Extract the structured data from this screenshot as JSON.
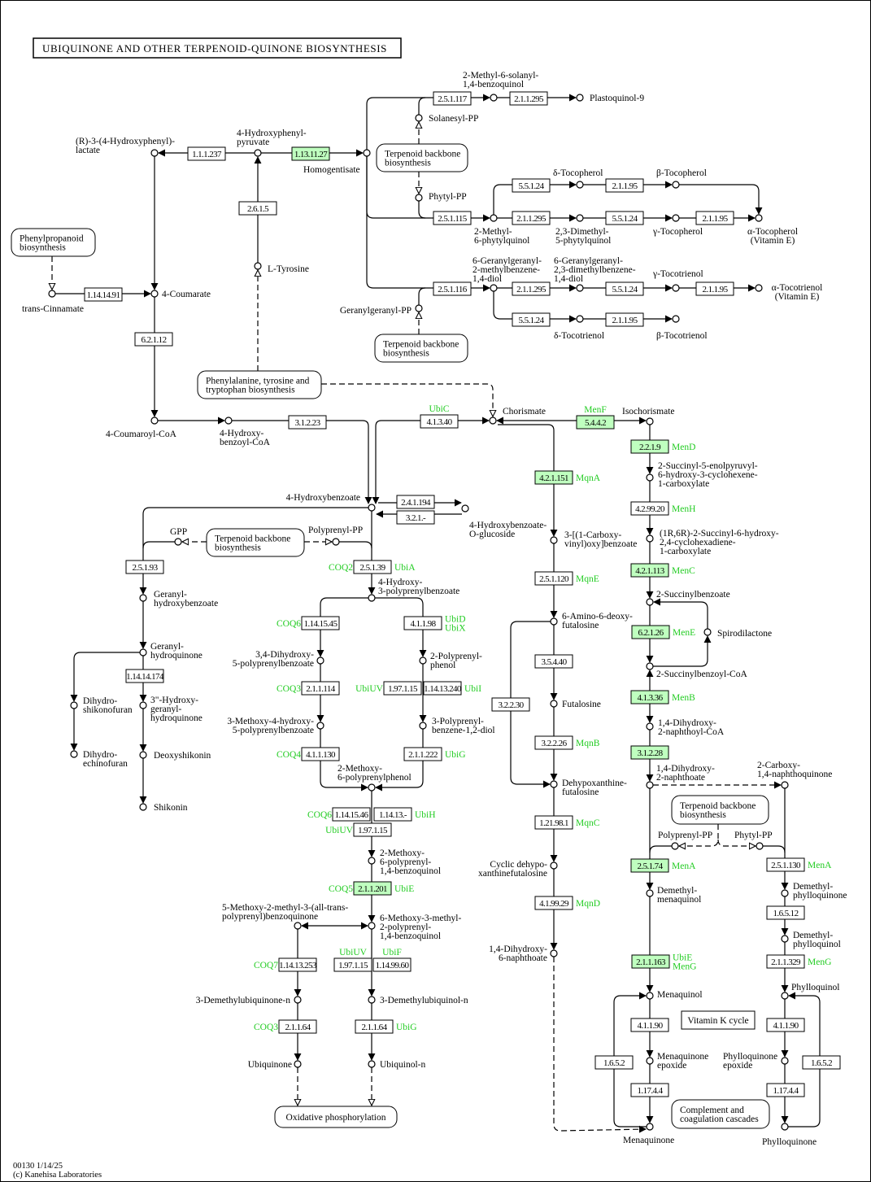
{
  "title": "UBIQUINONE AND OTHER TERPENOID-QUINONE BIOSYNTHESIS",
  "footer": {
    "map_id_date": "00130 1/14/25",
    "copyright": "(c) Kanehisa Laboratories"
  },
  "colors": {
    "highlight_fill": "#bfffbf",
    "gene_text": "#22cc22",
    "line": "#000000"
  },
  "maps": {
    "terp1": [
      "Terpenoid backbone",
      "biosynthesis"
    ],
    "phenyl": [
      "Phenylpropanoid",
      "biosynthesis"
    ],
    "terp2": [
      "Terpenoid backbone",
      "biosynthesis"
    ],
    "phetyr": [
      "Phenylalanine, tyrosine and",
      "tryptophan biosynthesis"
    ],
    "terp3": [
      "Terpenoid backbone",
      "biosynthesis"
    ],
    "terp4": [
      "Terpenoid backbone",
      "biosynthesis"
    ],
    "vitk": [
      "Vitamin K cycle"
    ],
    "compl": [
      "Complement and",
      "coagulation cascades"
    ],
    "oxphos": [
      "Oxidative phosphorylation"
    ]
  },
  "compounds": {
    "hpp": [
      "4-Hydroxyphenyl-",
      "pyruvate"
    ],
    "rlac": [
      "(R)-3-(4-Hydroxyphenyl)-",
      "lactate"
    ],
    "hga": [
      "Homogentisate"
    ],
    "tyr": [
      "L-Tyrosine"
    ],
    "cin": [
      "trans-Cinnamate"
    ],
    "coum": [
      "4-Coumarate"
    ],
    "coumcoa": [
      "4-Coumaroyl-CoA"
    ],
    "hbcoa": [
      "4-Hydroxy-",
      "benzoyl-CoA"
    ],
    "hb": [
      "4-Hydroxybenzoate"
    ],
    "hbglc": [
      "4-Hydroxybenzoate-",
      "O-glucoside"
    ],
    "chor": [
      "Chorismate"
    ],
    "isoch": [
      "Isochorismate"
    ],
    "m6s": [
      "2-Methyl-6-solanyl-",
      "1,4-benzoquinol"
    ],
    "pq9": [
      "Plastoquinol-9"
    ],
    "sol": [
      "Solanesyl-PP"
    ],
    "phy": [
      "Phytyl-PP"
    ],
    "m6p": [
      "2-Methyl-",
      "6-phytylquinol"
    ],
    "dmp": [
      "2,3-Dimethyl-",
      "5-phytylquinol"
    ],
    "dtoc": [
      "δ-Tocopherol"
    ],
    "btoc": [
      "β-Tocopherol"
    ],
    "gtoc": [
      "γ-Tocopherol"
    ],
    "atoc": [
      "α-Tocopherol",
      "(Vitamin E)"
    ],
    "ggmb": [
      "6-Geranylgeranyl-",
      "2-methylbenzene-",
      "1,4-diol"
    ],
    "ggdmb": [
      "6-Geranylgeranyl-",
      "2,3-dimethylbenzene-",
      "1,4-diol"
    ],
    "gtt": [
      "γ-Tocotrienol"
    ],
    "att": [
      "α-Tocotrienol",
      "(Vitamin E)"
    ],
    "dtt": [
      "δ-Tocotrienol"
    ],
    "btt": [
      "β-Tocotrienol"
    ],
    "ggpp": [
      "Geranylgeranyl-PP"
    ],
    "gpp": [
      "GPP"
    ],
    "ppp": [
      "Polyprenyl-PP"
    ],
    "ghb": [
      "Geranyl-",
      "hydroxybenzoate"
    ],
    "ghq": [
      "Geranyl-",
      "hydroquinone"
    ],
    "hgh": [
      "3\"-Hydroxy-",
      "geranyl-",
      "hydroquinone"
    ],
    "dsk": [
      "Deoxyshikonin"
    ],
    "shk": [
      "Shikonin"
    ],
    "dhsf": [
      "Dihydro-",
      "shikonofuran"
    ],
    "dhef": [
      "Dihydro-",
      "echinofuran"
    ],
    "h3pb": [
      "4-Hydroxy-",
      "3-polyprenylbenzoate"
    ],
    "dhpb": [
      "3,4-Dihydroxy-",
      "5-polyprenylbenzoate"
    ],
    "ppph": [
      "2-Polyprenyl-",
      "phenol"
    ],
    "mhpb": [
      "3-Methoxy-4-hydroxy-",
      "5-polyprenylbenzoate"
    ],
    "ppbd": [
      "3-Polyprenyl-",
      "benzene-1,2-diol"
    ],
    "mppp": [
      "2-Methoxy-",
      "6-polyprenylphenol"
    ],
    "mpbq": [
      "2-Methoxy-",
      "6-polyprenyl-",
      "1,4-benzoquinol"
    ],
    "mmab": [
      "5-Methoxy-2-methyl-3-(all-trans-",
      "polyprenyl)benzoquinone"
    ],
    "mmpb": [
      "6-Methoxy-3-methyl-",
      "2-polyprenyl-",
      "1,4-benzoquinol"
    ],
    "dmuq": [
      "3-Demethylubiquinone-n"
    ],
    "dmul": [
      "3-Demethylubiquinol-n"
    ],
    "ubq": [
      "Ubiquinone"
    ],
    "ubql": [
      "Ubiquinol-n"
    ],
    "cvb": [
      "3-[(1-Carboxy-",
      "vinyl)oxy]benzoate"
    ],
    "aadf": [
      "6-Amino-6-deoxy-",
      "futalosine"
    ],
    "futa": [
      "Futalosine"
    ],
    "dhfu": [
      "Dehypoxanthine-",
      "futalosine"
    ],
    "cdhf": [
      "Cyclic dehypo-",
      "xanthinefutalosine"
    ],
    "dhna6": [
      "1,4-Dihydroxy-",
      "6-naphthoate"
    ],
    "sephc": [
      "2-Succinyl-5-enolpyruvyl-",
      "6-hydroxy-3-cyclohexene-",
      "1-carboxylate"
    ],
    "shch": [
      "(1R,6R)-2-Succinyl-6-hydroxy-",
      "2,4-cyclohexadiene-",
      "1-carboxylate"
    ],
    "sb": [
      "2-Succinylbenzoate"
    ],
    "spiro": [
      "Spirodilactone"
    ],
    "sbcoa": [
      "2-Succinylbenzoyl-CoA"
    ],
    "dhncoa": [
      "1,4-Dihydroxy-",
      "2-naphthoyl-CoA"
    ],
    "dhna": [
      "1,4-Dihydroxy-",
      "2-naphthoate"
    ],
    "cnq": [
      "2-Carboxy-",
      "1,4-naphthoquinone"
    ],
    "ppp2": [
      "Polyprenyl-PP"
    ],
    "phy2": [
      "Phytyl-PP"
    ],
    "dmmql": [
      "Demethyl-",
      "menaquinol"
    ],
    "dmpq": [
      "Demethyl-",
      "phylloquinone"
    ],
    "dmpql": [
      "Demethyl-",
      "phylloquinol"
    ],
    "mql": [
      "Menaquinol"
    ],
    "pql": [
      "Phylloquinol"
    ],
    "mqe": [
      "Menaquinone",
      "epoxide"
    ],
    "pqe": [
      "Phylloquinone",
      "epoxide"
    ],
    "mq": [
      "Menaquinone"
    ],
    "pq": [
      "Phylloquinone"
    ]
  },
  "enzymes": {
    "e1": {
      "ec": "1.1.1.237",
      "hl": false
    },
    "e2": {
      "ec": "1.13.11.27",
      "hl": true
    },
    "e3": {
      "ec": "2.6.1.5",
      "hl": false
    },
    "e4": {
      "ec": "1.14.14.91",
      "hl": false
    },
    "e5": {
      "ec": "6.2.1.12",
      "hl": false
    },
    "e6": {
      "ec": "3.1.2.23",
      "hl": false
    },
    "e7": {
      "ec": "4.1.3.40",
      "hl": false,
      "top": "UbiC"
    },
    "e8": {
      "ec": "5.4.4.2",
      "hl": true,
      "top": "MenF"
    },
    "e9": {
      "ec": "2.5.1.117",
      "hl": false
    },
    "e10": {
      "ec": "2.1.1.295",
      "hl": false
    },
    "e11": {
      "ec": "5.5.1.24",
      "hl": false
    },
    "e12": {
      "ec": "2.1.1.95",
      "hl": false
    },
    "e13": {
      "ec": "2.5.1.115",
      "hl": false
    },
    "e14": {
      "ec": "2.1.1.295",
      "hl": false
    },
    "e15": {
      "ec": "5.5.1.24",
      "hl": false
    },
    "e16": {
      "ec": "2.1.1.95",
      "hl": false
    },
    "e17": {
      "ec": "2.5.1.116",
      "hl": false
    },
    "e18": {
      "ec": "2.1.1.295",
      "hl": false
    },
    "e19": {
      "ec": "5.5.1.24",
      "hl": false
    },
    "e20": {
      "ec": "2.1.1.95",
      "hl": false
    },
    "e21": {
      "ec": "5.5.1.24",
      "hl": false
    },
    "e22": {
      "ec": "2.1.1.95",
      "hl": false
    },
    "e23": {
      "ec": "2.4.1.194",
      "hl": false
    },
    "e24": {
      "ec": "3.2.1.-",
      "hl": false
    },
    "e25": {
      "ec": "2.5.1.93",
      "hl": false
    },
    "e26": {
      "ec": "2.5.1.39",
      "hl": false,
      "left": "COQ2",
      "right": [
        "UbiA"
      ]
    },
    "e27": {
      "ec": "1.14.14.174",
      "hl": false
    },
    "e28": {
      "ec": "1.14.15.45",
      "hl": false,
      "left": "COQ6"
    },
    "e29": {
      "ec": "4.1.1.98",
      "hl": false,
      "right": [
        "UbiD",
        "UbiX"
      ]
    },
    "e30": {
      "ec": "2.1.1.114",
      "hl": false,
      "left": "COQ3"
    },
    "e31": {
      "ec": "1.97.1.15",
      "hl": false,
      "left": "UbiUV"
    },
    "e32": {
      "ec": "1.14.13.240",
      "hl": false,
      "right": [
        "UbiI"
      ]
    },
    "e33": {
      "ec": "4.1.1.130",
      "hl": false,
      "left": "COQ4"
    },
    "e34": {
      "ec": "2.1.1.222",
      "hl": false,
      "right": [
        "UbiG"
      ]
    },
    "e35": {
      "ec": "1.14.15.46",
      "hl": false,
      "left": "COQ6"
    },
    "e36": {
      "ec": "1.14.13.-",
      "hl": false,
      "right": [
        "UbiH"
      ]
    },
    "e37": {
      "ec": "1.97.1.15",
      "hl": false,
      "left": "UbiUV"
    },
    "e38": {
      "ec": "2.1.1.201",
      "hl": true,
      "left": "COQ5",
      "right": [
        "UbiE"
      ]
    },
    "e39": {
      "ec": "1.14.13.253",
      "hl": false,
      "left": "COQ7"
    },
    "e40": {
      "ec": "1.97.1.15",
      "hl": false,
      "top": "UbiUV"
    },
    "e41": {
      "ec": "1.14.99.60",
      "hl": false,
      "top": "UbiF"
    },
    "e42": {
      "ec": "2.1.1.64",
      "hl": false,
      "left": "COQ3"
    },
    "e43": {
      "ec": "2.1.1.64",
      "hl": false,
      "right": [
        "UbiG"
      ]
    },
    "e44": {
      "ec": "4.2.1.151",
      "hl": true,
      "right": [
        "MqnA"
      ]
    },
    "e45": {
      "ec": "2.5.1.120",
      "hl": false,
      "right": [
        "MqnE"
      ]
    },
    "e46": {
      "ec": "3.5.4.40",
      "hl": false
    },
    "e47": {
      "ec": "3.2.2.30",
      "hl": false
    },
    "e48": {
      "ec": "3.2.2.26",
      "hl": false,
      "right": [
        "MqnB"
      ]
    },
    "e49": {
      "ec": "1.21.98.1",
      "hl": false,
      "right": [
        "MqnC"
      ]
    },
    "e50": {
      "ec": "4.1.99.29",
      "hl": false,
      "right": [
        "MqnD"
      ]
    },
    "e51": {
      "ec": "2.2.1.9",
      "hl": true,
      "right": [
        "MenD"
      ]
    },
    "e52": {
      "ec": "4.2.99.20",
      "hl": false,
      "right": [
        "MenH"
      ]
    },
    "e53": {
      "ec": "4.2.1.113",
      "hl": true,
      "right": [
        "MenC"
      ]
    },
    "e54": {
      "ec": "6.2.1.26",
      "hl": true,
      "right": [
        "MenE"
      ]
    },
    "e55": {
      "ec": "4.1.3.36",
      "hl": true,
      "right": [
        "MenB"
      ]
    },
    "e56": {
      "ec": "3.1.2.28",
      "hl": true
    },
    "e57": {
      "ec": "2.5.1.74",
      "hl": true,
      "right": [
        "MenA"
      ]
    },
    "e58": {
      "ec": "2.5.1.130",
      "hl": false,
      "right": [
        "MenA"
      ]
    },
    "e59": {
      "ec": "1.6.5.12",
      "hl": false
    },
    "e60": {
      "ec": "2.1.1.163",
      "hl": true,
      "right": [
        "UbiE",
        "MenG"
      ]
    },
    "e61": {
      "ec": "2.1.1.329",
      "hl": false,
      "right": [
        "MenG"
      ]
    },
    "e62": {
      "ec": "4.1.1.90",
      "hl": false
    },
    "e63": {
      "ec": "4.1.1.90",
      "hl": false
    },
    "e64": {
      "ec": "1.6.5.2",
      "hl": false
    },
    "e65": {
      "ec": "1.6.5.2",
      "hl": false
    },
    "e66": {
      "ec": "1.17.4.4",
      "hl": false
    },
    "e67": {
      "ec": "1.17.4.4",
      "hl": false
    }
  }
}
